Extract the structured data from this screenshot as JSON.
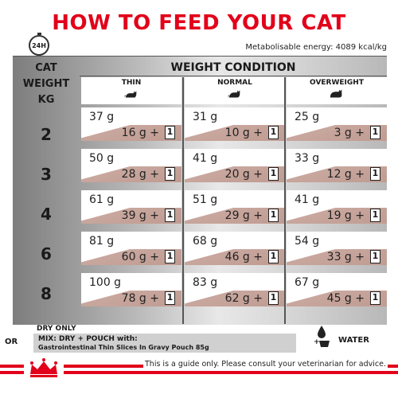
{
  "title": "HOW TO FEED YOUR CAT",
  "clock_label": "24H",
  "energy": "Metabolisable energy: 4089 kcal/kg",
  "cat_weight_header": [
    "CAT",
    "WEIGHT",
    "KG"
  ],
  "weight_condition": "WEIGHT CONDITION",
  "columns": [
    "THIN",
    "NORMAL",
    "OVERWEIGHT"
  ],
  "pouch_count": "1",
  "rows": [
    {
      "weight": "2",
      "cells": [
        {
          "dry": "37 g",
          "mix": "16 g  +"
        },
        {
          "dry": "31 g",
          "mix": "10 g  +"
        },
        {
          "dry": "25 g",
          "mix": "3 g  +"
        }
      ]
    },
    {
      "weight": "3",
      "cells": [
        {
          "dry": "50 g",
          "mix": "28 g  +"
        },
        {
          "dry": "41 g",
          "mix": "20 g  +"
        },
        {
          "dry": "33 g",
          "mix": "12 g  +"
        }
      ]
    },
    {
      "weight": "4",
      "cells": [
        {
          "dry": "61 g",
          "mix": "39 g  +"
        },
        {
          "dry": "51 g",
          "mix": "29 g  +"
        },
        {
          "dry": "41 g",
          "mix": "19 g  +"
        }
      ]
    },
    {
      "weight": "6",
      "cells": [
        {
          "dry": "81 g",
          "mix": "60 g  +"
        },
        {
          "dry": "68 g",
          "mix": "46 g  +"
        },
        {
          "dry": "54 g",
          "mix": "33 g  +"
        }
      ]
    },
    {
      "weight": "8",
      "cells": [
        {
          "dry": "100 g",
          "mix": "78 g  +"
        },
        {
          "dry": "83 g",
          "mix": "62 g  +"
        },
        {
          "dry": "67 g",
          "mix": "45 g  +"
        }
      ]
    }
  ],
  "dry_only": "DRY ONLY",
  "or": "OR",
  "mix_line1": "MIX: DRY + POUCH with:",
  "mix_line2": "Gastrointestinal Thin Slices In Gravy Pouch 85g",
  "water": "WATER",
  "disclaimer": "This is a guide only. Please consult your veterinarian for advice.",
  "colors": {
    "brand_red": "#e2001a",
    "pouch_band": "#c09c92",
    "mix_box": "#d0d0d0"
  },
  "icons": [
    "clock-icon",
    "cat-silhouette-icon",
    "pouch-icon",
    "water-bowl-icon",
    "royal-canin-crown-logo"
  ]
}
